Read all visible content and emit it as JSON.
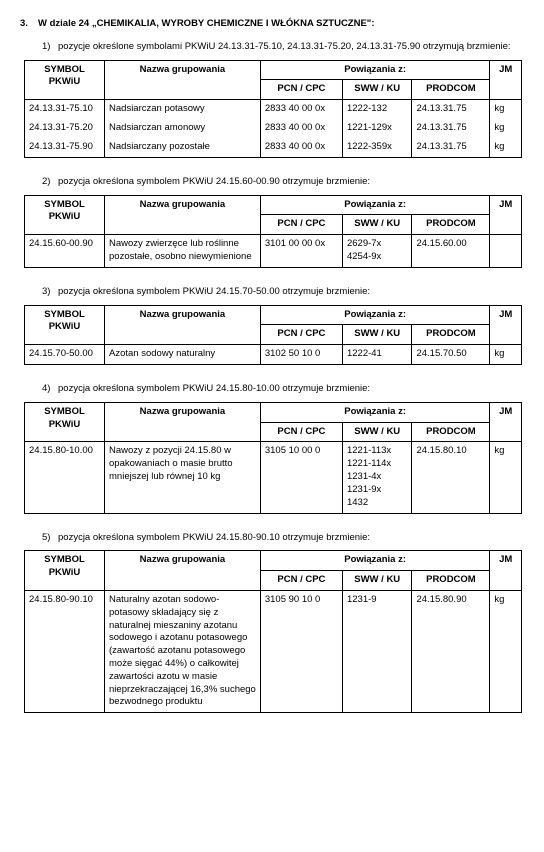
{
  "section": {
    "num": "3.",
    "title": "W dziale 24 „CHEMIKALIA, WYROBY CHEMICZNE I WŁÓKNA SZTUCZNE\":"
  },
  "headers": {
    "symbol": "SYMBOL PKWiU",
    "nazwa": "Nazwa grupowania",
    "pow": "Powiązania z:",
    "pcn": "PCN / CPC",
    "sww": "SWW / KU",
    "prod": "PRODCOM",
    "jm": "JM"
  },
  "items": [
    {
      "num": "1)",
      "text": "pozycje określone symbolami PKWiU 24.13.31-75.10, 24.13.31-75.20, 24.13.31-75.90 otrzymują brzmienie:",
      "rows": [
        {
          "sym": "24.13.31-75.10",
          "nazwa": "Nadsiarczan potasowy",
          "pcn": "2833 40 00 0x",
          "sww": "1222-132",
          "prod": "24.13.31.75",
          "jm": "kg"
        },
        {
          "sym": "24.13.31-75.20",
          "nazwa": "Nadsiarczan amonowy",
          "pcn": "2833 40 00 0x",
          "sww": "1221-129x",
          "prod": "24.13.31.75",
          "jm": "kg"
        },
        {
          "sym": "24.13.31-75.90",
          "nazwa": "Nadsiarczany pozostałe",
          "pcn": "2833 40 00 0x",
          "sww": "1222-359x",
          "prod": "24.13.31.75",
          "jm": "kg"
        }
      ]
    },
    {
      "num": "2)",
      "text": "pozycja określona symbolem PKWiU 24.15.60-00.90 otrzymuje brzmienie:",
      "rows": [
        {
          "sym": "24.15.60-00.90",
          "nazwa": "Nawozy zwierzęce lub roślinne pozostałe, osobno niewymienione",
          "pcn": "3101 00 00 0x",
          "sww": "2629-7x\n4254-9x",
          "prod": "24.15.60.00",
          "jm": ""
        }
      ]
    },
    {
      "num": "3)",
      "text": "pozycja określona symbolem PKWiU 24.15.70-50.00  otrzymuje brzmienie:",
      "rows": [
        {
          "sym": "24.15.70-50.00",
          "nazwa": "Azotan sodowy naturalny",
          "pcn": "3102 50 10 0",
          "sww": "1222-41",
          "prod": "24.15.70.50",
          "jm": "kg"
        }
      ]
    },
    {
      "num": "4)",
      "text": "pozycja określona symbolem PKWiU 24.15.80-10.00 otrzymuje brzmienie:",
      "rows": [
        {
          "sym": "24.15.80-10.00",
          "nazwa": "Nawozy z pozycji 24.15.80 w opakowaniach o masie brutto mniejszej lub równej 10 kg",
          "pcn": "3105 10 00 0",
          "sww": "1221-113x\n1221-114x\n1231-4x\n1231-9x\n1432",
          "prod": "24.15.80.10",
          "jm": "kg"
        }
      ]
    },
    {
      "num": "5)",
      "text": "pozycja określona symbolem PKWiU 24.15.80-90.10 otrzymuje brzmienie:",
      "rows": [
        {
          "sym": "24.15.80-90.10",
          "nazwa": "Naturalny azotan sodowo-potasowy składający się z naturalnej mieszaniny azotanu sodowego i azotanu potasowego (zawartość azotanu potasowego może sięgać 44%) o całkowitej zawartości azotu w masie nieprzekraczającej 16,3% suchego bezwodnego produktu",
          "pcn": "3105 90 10 0",
          "sww": "1231-9",
          "prod": "24.15.80.90",
          "jm": "kg"
        }
      ]
    }
  ]
}
